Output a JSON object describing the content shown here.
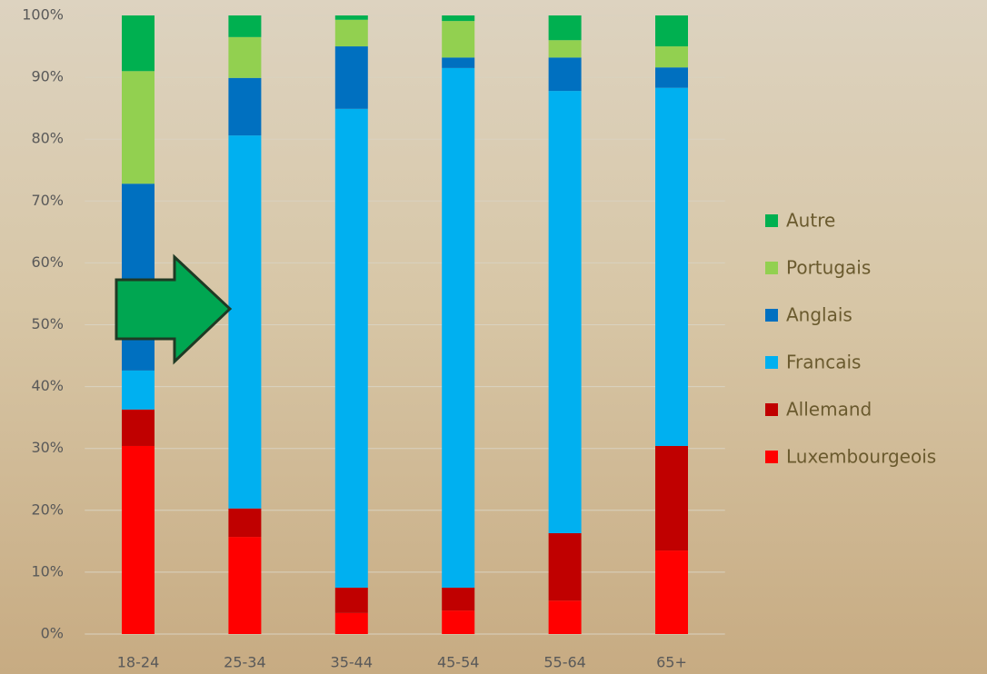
{
  "chart_data": {
    "type": "stacked_bar",
    "categories": [
      "18-24",
      "25-34",
      "35-44",
      "45-54",
      "55-64",
      "65+"
    ],
    "series": [
      {
        "name": "Luxembourgeois",
        "color": "#ff0000",
        "values": [
          30.4,
          15.7,
          3.4,
          3.8,
          5.4,
          13.5
        ]
      },
      {
        "name": "Allemand",
        "color": "#c00000",
        "values": [
          5.9,
          4.6,
          4.1,
          3.7,
          10.9,
          16.9
        ]
      },
      {
        "name": "Francais",
        "color": "#00b0f0",
        "values": [
          6.3,
          60.3,
          77.4,
          84.0,
          71.5,
          57.9
        ]
      },
      {
        "name": "Anglais",
        "color": "#0070c0",
        "values": [
          30.2,
          9.3,
          10.1,
          1.7,
          5.4,
          3.3
        ]
      },
      {
        "name": "Portugais",
        "color": "#92d050",
        "values": [
          18.2,
          6.6,
          4.3,
          5.9,
          2.8,
          3.4
        ]
      },
      {
        "name": "Autre",
        "color": "#00b050",
        "values": [
          9.0,
          3.5,
          0.7,
          0.9,
          4.0,
          5.0
        ]
      }
    ],
    "ylim": [
      0,
      100
    ],
    "yticks": [
      {
        "value": 0,
        "label": "0%"
      },
      {
        "value": 10,
        "label": "10%"
      },
      {
        "value": 20,
        "label": "20%"
      },
      {
        "value": 30,
        "label": "30%"
      },
      {
        "value": 40,
        "label": "40%"
      },
      {
        "value": 50,
        "label": "50%"
      },
      {
        "value": 60,
        "label": "60%"
      },
      {
        "value": 70,
        "label": "70%"
      },
      {
        "value": 80,
        "label": "80%"
      },
      {
        "value": 90,
        "label": "90%"
      },
      {
        "value": 100,
        "label": "100%"
      }
    ],
    "grid": true,
    "legend": "right"
  }
}
